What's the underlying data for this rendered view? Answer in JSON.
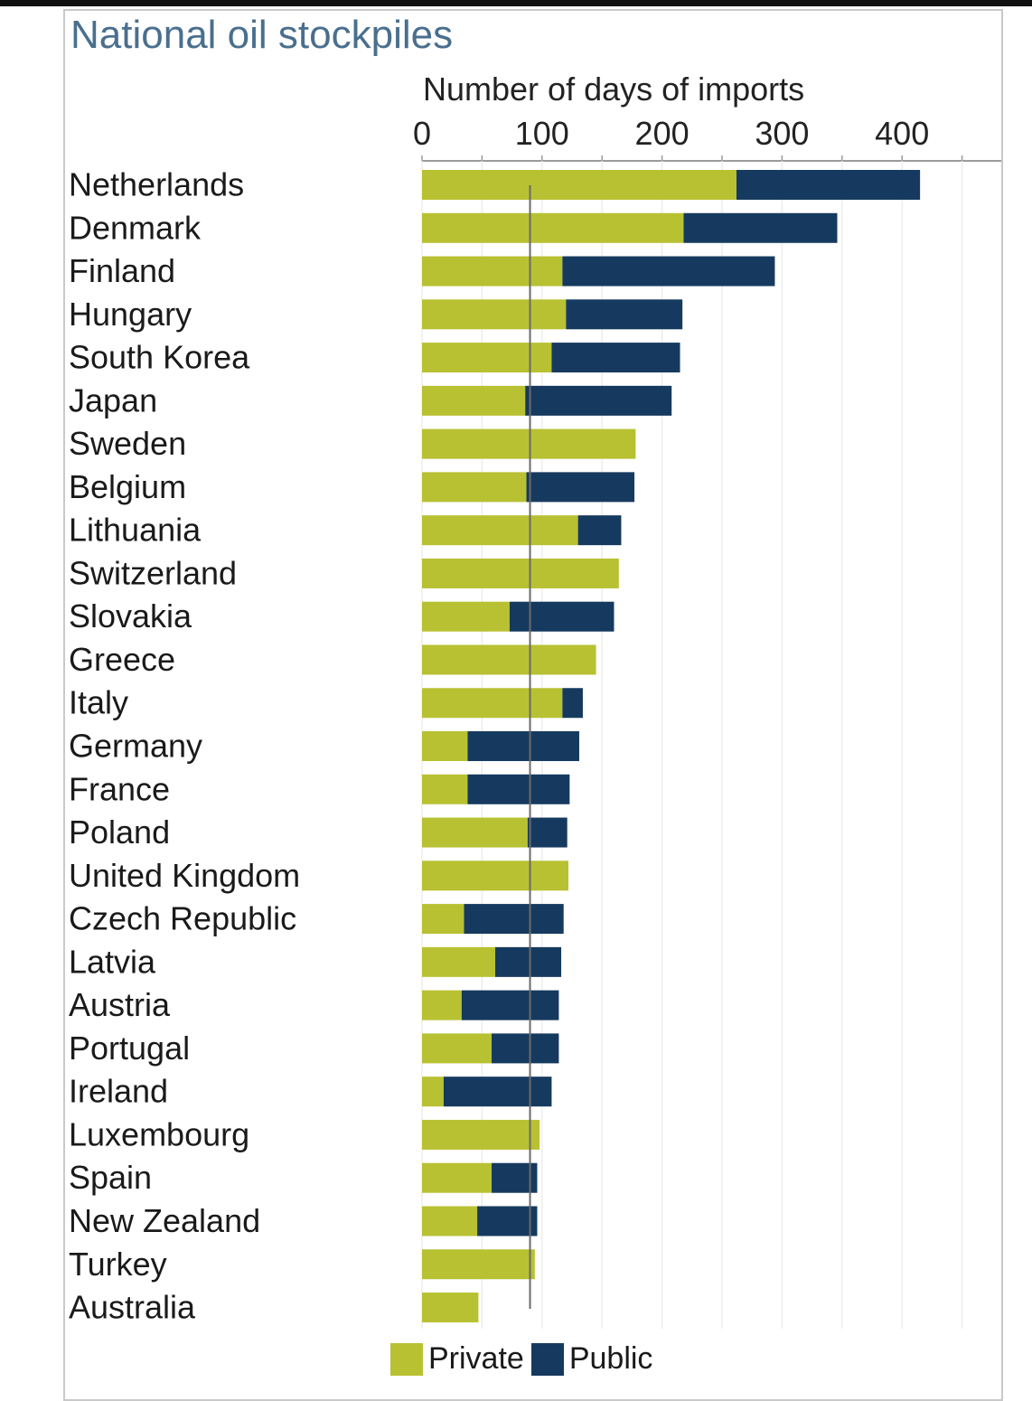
{
  "colors": {
    "private": "#b8c132",
    "public": "#163a5f",
    "title": "#4a6f8e",
    "frame": "#c9c9c9"
  },
  "chart_data": {
    "type": "bar",
    "orientation": "horizontal",
    "stacked": true,
    "title": "National oil stockpiles",
    "xlabel": "Number of days of imports",
    "xlim": [
      0,
      460
    ],
    "xticks": [
      0,
      100,
      200,
      300,
      400
    ],
    "reference_line": 90,
    "legend_position": "bottom",
    "categories": [
      "Netherlands",
      "Denmark",
      "Finland",
      "Hungary",
      "South Korea",
      "Japan",
      "Sweden",
      "Belgium",
      "Lithuania",
      "Switzerland",
      "Slovakia",
      "Greece",
      "Italy",
      "Germany",
      "France",
      "Poland",
      "United Kingdom",
      "Czech Republic",
      "Latvia",
      "Austria",
      "Portugal",
      "Ireland",
      "Luxembourg",
      "Spain",
      "New Zealand",
      "Turkey",
      "Australia"
    ],
    "series": [
      {
        "name": "Private",
        "values": [
          262,
          218,
          117,
          120,
          108,
          86,
          178,
          87,
          130,
          164,
          73,
          145,
          117,
          38,
          38,
          88,
          122,
          35,
          61,
          33,
          58,
          18,
          98,
          58,
          46,
          94,
          47
        ]
      },
      {
        "name": "Public",
        "values": [
          153,
          128,
          177,
          97,
          107,
          122,
          0,
          90,
          36,
          0,
          87,
          0,
          17,
          93,
          85,
          33,
          0,
          83,
          55,
          81,
          56,
          90,
          0,
          38,
          50,
          0,
          0
        ]
      }
    ]
  }
}
